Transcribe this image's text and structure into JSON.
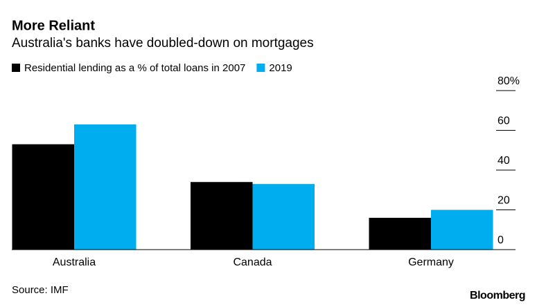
{
  "chart_data": {
    "type": "bar",
    "title": "More Reliant",
    "subtitle": "Australia's banks have doubled-down on mortgages",
    "categories": [
      "Australia",
      "Canada",
      "Germany"
    ],
    "series": [
      {
        "name": "Residential lending as a % of total loans in 2007",
        "color": "#000000",
        "values": [
          53,
          34,
          16
        ]
      },
      {
        "name": "2019",
        "color": "#00aeef",
        "values": [
          63,
          33,
          20
        ]
      }
    ],
    "ylim": [
      0,
      80
    ],
    "yticks": [
      0,
      20,
      40,
      {
        "value": 80,
        "label": "80%"
      },
      60
    ],
    "source": "Source: IMF",
    "credit": "Bloomberg"
  }
}
